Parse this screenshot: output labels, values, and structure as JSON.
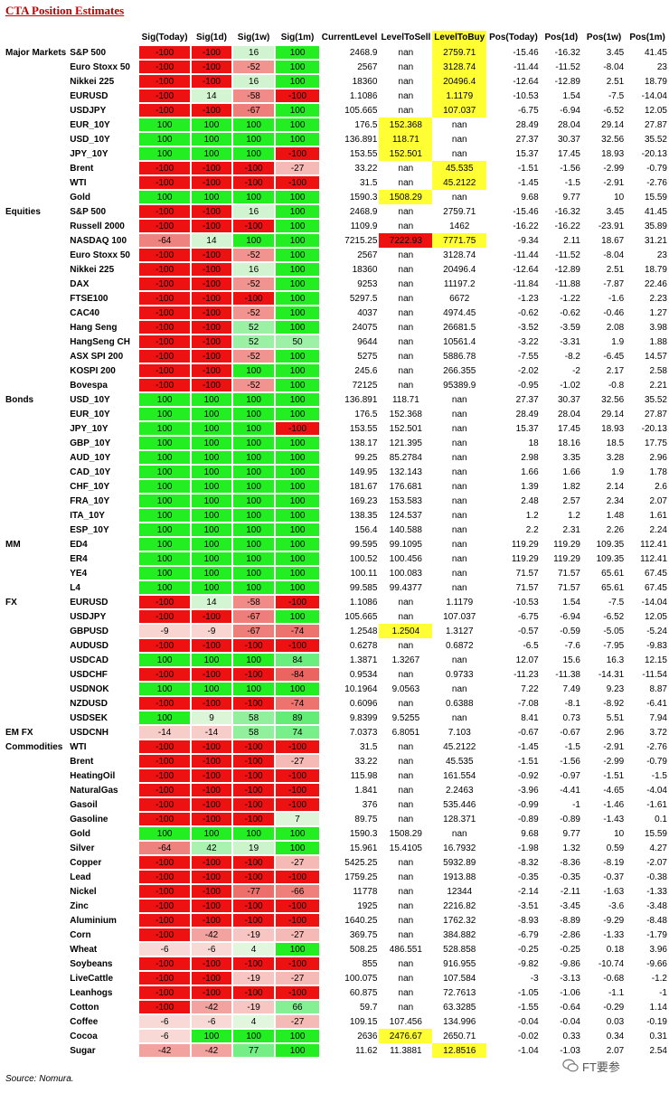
{
  "title": "CTA Position Estimates",
  "source": "Source: Nomura.",
  "watermark": "FT要参",
  "columns": [
    "",
    "",
    "Sig(Today)",
    "Sig(1d)",
    "Sig(1w)",
    "Sig(1m)",
    "CurrentLevel",
    "LevelToSell",
    "LevelToBuy",
    "Pos(Today)",
    "Pos(1d)",
    "Pos(1w)",
    "Pos(1m)"
  ],
  "rows": [
    [
      "Major Markets",
      "S&P 500",
      "-100",
      "-100",
      "16",
      "100",
      "2468.9",
      "nan",
      "2759.71",
      "-15.46",
      "-16.32",
      "3.45",
      "41.45"
    ],
    [
      "",
      "Euro Stoxx 50",
      "-100",
      "-100",
      "-52",
      "100",
      "2567",
      "nan",
      "3128.74",
      "-11.44",
      "-11.52",
      "-8.04",
      "23"
    ],
    [
      "",
      "Nikkei 225",
      "-100",
      "-100",
      "16",
      "100",
      "18360",
      "nan",
      "20496.4",
      "-12.64",
      "-12.89",
      "2.51",
      "18.79"
    ],
    [
      "",
      "EURUSD",
      "-100",
      "14",
      "-58",
      "-100",
      "1.1086",
      "nan",
      "1.1179",
      "-10.53",
      "1.54",
      "-7.5",
      "-14.04"
    ],
    [
      "",
      "USDJPY",
      "-100",
      "-100",
      "-67",
      "100",
      "105.665",
      "nan",
      "107.037",
      "-6.75",
      "-6.94",
      "-6.52",
      "12.05"
    ],
    [
      "",
      "EUR_10Y",
      "100",
      "100",
      "100",
      "100",
      "176.5",
      "152.368",
      "nan",
      "28.49",
      "28.04",
      "29.14",
      "27.87"
    ],
    [
      "",
      "USD_10Y",
      "100",
      "100",
      "100",
      "100",
      "136.891",
      "118.71",
      "nan",
      "27.37",
      "30.37",
      "32.56",
      "35.52"
    ],
    [
      "",
      "JPY_10Y",
      "100",
      "100",
      "100",
      "-100",
      "153.55",
      "152.501",
      "nan",
      "15.37",
      "17.45",
      "18.93",
      "-20.13"
    ],
    [
      "",
      "Brent",
      "-100",
      "-100",
      "-100",
      "-27",
      "33.22",
      "nan",
      "45.535",
      "-1.51",
      "-1.56",
      "-2.99",
      "-0.79"
    ],
    [
      "",
      "WTI",
      "-100",
      "-100",
      "-100",
      "-100",
      "31.5",
      "nan",
      "45.2122",
      "-1.45",
      "-1.5",
      "-2.91",
      "-2.76"
    ],
    [
      "",
      "Gold",
      "100",
      "100",
      "100",
      "100",
      "1590.3",
      "1508.29",
      "nan",
      "9.68",
      "9.77",
      "10",
      "15.59"
    ],
    [
      "Equities",
      "S&P 500",
      "-100",
      "-100",
      "16",
      "100",
      "2468.9",
      "nan",
      "2759.71",
      "-15.46",
      "-16.32",
      "3.45",
      "41.45"
    ],
    [
      "",
      "Russell 2000",
      "-100",
      "-100",
      "-100",
      "100",
      "1109.9",
      "nan",
      "1462",
      "-16.22",
      "-16.22",
      "-23.91",
      "35.89"
    ],
    [
      "",
      "NASDAQ 100",
      "-64",
      "14",
      "100",
      "100",
      "7215.25",
      "7222.93",
      "7771.75",
      "-9.34",
      "2.11",
      "18.67",
      "31.21"
    ],
    [
      "",
      "Euro Stoxx 50",
      "-100",
      "-100",
      "-52",
      "100",
      "2567",
      "nan",
      "3128.74",
      "-11.44",
      "-11.52",
      "-8.04",
      "23"
    ],
    [
      "",
      "Nikkei 225",
      "-100",
      "-100",
      "16",
      "100",
      "18360",
      "nan",
      "20496.4",
      "-12.64",
      "-12.89",
      "2.51",
      "18.79"
    ],
    [
      "",
      "DAX",
      "-100",
      "-100",
      "-52",
      "100",
      "9253",
      "nan",
      "11197.2",
      "-11.84",
      "-11.88",
      "-7.87",
      "22.46"
    ],
    [
      "",
      "FTSE100",
      "-100",
      "-100",
      "-100",
      "100",
      "5297.5",
      "nan",
      "6672",
      "-1.23",
      "-1.22",
      "-1.6",
      "2.23"
    ],
    [
      "",
      "CAC40",
      "-100",
      "-100",
      "-52",
      "100",
      "4037",
      "nan",
      "4974.45",
      "-0.62",
      "-0.62",
      "-0.46",
      "1.27"
    ],
    [
      "",
      "Hang Seng",
      "-100",
      "-100",
      "52",
      "100",
      "24075",
      "nan",
      "26681.5",
      "-3.52",
      "-3.59",
      "2.08",
      "3.98"
    ],
    [
      "",
      "HangSeng CH",
      "-100",
      "-100",
      "52",
      "50",
      "9644",
      "nan",
      "10561.4",
      "-3.22",
      "-3.31",
      "1.9",
      "1.88"
    ],
    [
      "",
      "ASX SPI 200",
      "-100",
      "-100",
      "-52",
      "100",
      "5275",
      "nan",
      "5886.78",
      "-7.55",
      "-8.2",
      "-6.45",
      "14.57"
    ],
    [
      "",
      "KOSPI 200",
      "-100",
      "-100",
      "100",
      "100",
      "245.6",
      "nan",
      "266.355",
      "-2.02",
      "-2",
      "2.17",
      "2.58"
    ],
    [
      "",
      "Bovespa",
      "-100",
      "-100",
      "-52",
      "100",
      "72125",
      "nan",
      "95389.9",
      "-0.95",
      "-1.02",
      "-0.8",
      "2.21"
    ],
    [
      "Bonds",
      "USD_10Y",
      "100",
      "100",
      "100",
      "100",
      "136.891",
      "118.71",
      "nan",
      "27.37",
      "30.37",
      "32.56",
      "35.52"
    ],
    [
      "",
      "EUR_10Y",
      "100",
      "100",
      "100",
      "100",
      "176.5",
      "152.368",
      "nan",
      "28.49",
      "28.04",
      "29.14",
      "27.87"
    ],
    [
      "",
      "JPY_10Y",
      "100",
      "100",
      "100",
      "-100",
      "153.55",
      "152.501",
      "nan",
      "15.37",
      "17.45",
      "18.93",
      "-20.13"
    ],
    [
      "",
      "GBP_10Y",
      "100",
      "100",
      "100",
      "100",
      "138.17",
      "121.395",
      "nan",
      "18",
      "18.16",
      "18.5",
      "17.75"
    ],
    [
      "",
      "AUD_10Y",
      "100",
      "100",
      "100",
      "100",
      "99.25",
      "85.2784",
      "nan",
      "2.98",
      "3.35",
      "3.28",
      "2.96"
    ],
    [
      "",
      "CAD_10Y",
      "100",
      "100",
      "100",
      "100",
      "149.95",
      "132.143",
      "nan",
      "1.66",
      "1.66",
      "1.9",
      "1.78"
    ],
    [
      "",
      "CHF_10Y",
      "100",
      "100",
      "100",
      "100",
      "181.67",
      "176.681",
      "nan",
      "1.39",
      "1.82",
      "2.14",
      "2.6"
    ],
    [
      "",
      "FRA_10Y",
      "100",
      "100",
      "100",
      "100",
      "169.23",
      "153.583",
      "nan",
      "2.48",
      "2.57",
      "2.34",
      "2.07"
    ],
    [
      "",
      "ITA_10Y",
      "100",
      "100",
      "100",
      "100",
      "138.35",
      "124.537",
      "nan",
      "1.2",
      "1.2",
      "1.48",
      "1.61"
    ],
    [
      "",
      "ESP_10Y",
      "100",
      "100",
      "100",
      "100",
      "156.4",
      "140.588",
      "nan",
      "2.2",
      "2.31",
      "2.26",
      "2.24"
    ],
    [
      "MM",
      "ED4",
      "100",
      "100",
      "100",
      "100",
      "99.595",
      "99.1095",
      "nan",
      "119.29",
      "119.29",
      "109.35",
      "112.41"
    ],
    [
      "",
      "ER4",
      "100",
      "100",
      "100",
      "100",
      "100.52",
      "100.456",
      "nan",
      "119.29",
      "119.29",
      "109.35",
      "112.41"
    ],
    [
      "",
      "YE4",
      "100",
      "100",
      "100",
      "100",
      "100.11",
      "100.083",
      "nan",
      "71.57",
      "71.57",
      "65.61",
      "67.45"
    ],
    [
      "",
      "L4",
      "100",
      "100",
      "100",
      "100",
      "99.585",
      "99.4377",
      "nan",
      "71.57",
      "71.57",
      "65.61",
      "67.45"
    ],
    [
      "FX",
      "EURUSD",
      "-100",
      "14",
      "-58",
      "-100",
      "1.1086",
      "nan",
      "1.1179",
      "-10.53",
      "1.54",
      "-7.5",
      "-14.04"
    ],
    [
      "",
      "USDJPY",
      "-100",
      "-100",
      "-67",
      "100",
      "105.665",
      "nan",
      "107.037",
      "-6.75",
      "-6.94",
      "-6.52",
      "12.05"
    ],
    [
      "",
      "GBPUSD",
      "-9",
      "-9",
      "-67",
      "-74",
      "1.2548",
      "1.2504",
      "1.3127",
      "-0.57",
      "-0.59",
      "-5.05",
      "-5.24"
    ],
    [
      "",
      "AUDUSD",
      "-100",
      "-100",
      "-100",
      "-100",
      "0.6278",
      "nan",
      "0.6872",
      "-6.5",
      "-7.6",
      "-7.95",
      "-9.83"
    ],
    [
      "",
      "USDCAD",
      "100",
      "100",
      "100",
      "84",
      "1.3871",
      "1.3267",
      "nan",
      "12.07",
      "15.6",
      "16.3",
      "12.15"
    ],
    [
      "",
      "USDCHF",
      "-100",
      "-100",
      "-100",
      "-84",
      "0.9534",
      "nan",
      "0.9733",
      "-11.23",
      "-11.38",
      "-14.31",
      "-11.54"
    ],
    [
      "",
      "USDNOK",
      "100",
      "100",
      "100",
      "100",
      "10.1964",
      "9.0563",
      "nan",
      "7.22",
      "7.49",
      "9.23",
      "8.87"
    ],
    [
      "",
      "NZDUSD",
      "-100",
      "-100",
      "-100",
      "-74",
      "0.6096",
      "nan",
      "0.6388",
      "-7.08",
      "-8.1",
      "-8.92",
      "-6.41"
    ],
    [
      "",
      "USDSEK",
      "100",
      "9",
      "58",
      "89",
      "9.8399",
      "9.5255",
      "nan",
      "8.41",
      "0.73",
      "5.51",
      "7.94"
    ],
    [
      "EM FX",
      "USDCNH",
      "-14",
      "-14",
      "58",
      "74",
      "7.0373",
      "6.8051",
      "7.103",
      "-0.67",
      "-0.67",
      "2.96",
      "3.72"
    ],
    [
      "Commodities",
      "WTI",
      "-100",
      "-100",
      "-100",
      "-100",
      "31.5",
      "nan",
      "45.2122",
      "-1.45",
      "-1.5",
      "-2.91",
      "-2.76"
    ],
    [
      "",
      "Brent",
      "-100",
      "-100",
      "-100",
      "-27",
      "33.22",
      "nan",
      "45.535",
      "-1.51",
      "-1.56",
      "-2.99",
      "-0.79"
    ],
    [
      "",
      "HeatingOil",
      "-100",
      "-100",
      "-100",
      "-100",
      "115.98",
      "nan",
      "161.554",
      "-0.92",
      "-0.97",
      "-1.51",
      "-1.5"
    ],
    [
      "",
      "NaturalGas",
      "-100",
      "-100",
      "-100",
      "-100",
      "1.841",
      "nan",
      "2.2463",
      "-3.96",
      "-4.41",
      "-4.65",
      "-4.04"
    ],
    [
      "",
      "Gasoil",
      "-100",
      "-100",
      "-100",
      "-100",
      "376",
      "nan",
      "535.446",
      "-0.99",
      "-1",
      "-1.46",
      "-1.61"
    ],
    [
      "",
      "Gasoline",
      "-100",
      "-100",
      "-100",
      "7",
      "89.75",
      "nan",
      "128.371",
      "-0.89",
      "-0.89",
      "-1.43",
      "0.1"
    ],
    [
      "",
      "Gold",
      "100",
      "100",
      "100",
      "100",
      "1590.3",
      "1508.29",
      "nan",
      "9.68",
      "9.77",
      "10",
      "15.59"
    ],
    [
      "",
      "Silver",
      "-64",
      "42",
      "19",
      "100",
      "15.961",
      "15.4105",
      "16.7932",
      "-1.98",
      "1.32",
      "0.59",
      "4.27"
    ],
    [
      "",
      "Copper",
      "-100",
      "-100",
      "-100",
      "-27",
      "5425.25",
      "nan",
      "5932.89",
      "-8.32",
      "-8.36",
      "-8.19",
      "-2.07"
    ],
    [
      "",
      "Lead",
      "-100",
      "-100",
      "-100",
      "-100",
      "1759.25",
      "nan",
      "1913.88",
      "-0.35",
      "-0.35",
      "-0.37",
      "-0.38"
    ],
    [
      "",
      "Nickel",
      "-100",
      "-100",
      "-77",
      "-66",
      "11778",
      "nan",
      "12344",
      "-2.14",
      "-2.11",
      "-1.63",
      "-1.33"
    ],
    [
      "",
      "Zinc",
      "-100",
      "-100",
      "-100",
      "-100",
      "1925",
      "nan",
      "2216.82",
      "-3.51",
      "-3.45",
      "-3.6",
      "-3.48"
    ],
    [
      "",
      "Aluminium",
      "-100",
      "-100",
      "-100",
      "-100",
      "1640.25",
      "nan",
      "1762.32",
      "-8.93",
      "-8.89",
      "-9.29",
      "-8.48"
    ],
    [
      "",
      "Corn",
      "-100",
      "-42",
      "-19",
      "-27",
      "369.75",
      "nan",
      "384.882",
      "-6.79",
      "-2.86",
      "-1.33",
      "-1.79"
    ],
    [
      "",
      "Wheat",
      "-6",
      "-6",
      "4",
      "100",
      "508.25",
      "486.551",
      "528.858",
      "-0.25",
      "-0.25",
      "0.18",
      "3.96"
    ],
    [
      "",
      "Soybeans",
      "-100",
      "-100",
      "-100",
      "-100",
      "855",
      "nan",
      "916.955",
      "-9.82",
      "-9.86",
      "-10.74",
      "-9.66"
    ],
    [
      "",
      "LiveCattle",
      "-100",
      "-100",
      "-19",
      "-27",
      "100.075",
      "nan",
      "107.584",
      "-3",
      "-3.13",
      "-0.68",
      "-1.2"
    ],
    [
      "",
      "Leanhogs",
      "-100",
      "-100",
      "-100",
      "-100",
      "60.875",
      "nan",
      "72.7613",
      "-1.05",
      "-1.06",
      "-1.1",
      "-1"
    ],
    [
      "",
      "Cotton",
      "-100",
      "-42",
      "-19",
      "66",
      "59.7",
      "nan",
      "63.3285",
      "-1.55",
      "-0.64",
      "-0.29",
      "1.14"
    ],
    [
      "",
      "Coffee",
      "-6",
      "-6",
      "4",
      "-27",
      "109.15",
      "107.456",
      "134.996",
      "-0.04",
      "-0.04",
      "0.03",
      "-0.19"
    ],
    [
      "",
      "Cocoa",
      "-6",
      "100",
      "100",
      "100",
      "2636",
      "2476.67",
      "2650.71",
      "-0.02",
      "0.33",
      "0.34",
      "0.31"
    ],
    [
      "",
      "Sugar",
      "-42",
      "-42",
      "77",
      "100",
      "11.62",
      "11.3881",
      "12.8516",
      "-1.04",
      "-1.03",
      "2.07",
      "2.54"
    ]
  ],
  "highlights": [
    {
      "row": 0,
      "col": 8,
      "color": "#ffff33"
    },
    {
      "row": 1,
      "col": 8,
      "color": "#ffff33"
    },
    {
      "row": 2,
      "col": 8,
      "color": "#ffff33"
    },
    {
      "row": 3,
      "col": 8,
      "color": "#ffff33"
    },
    {
      "row": 4,
      "col": 8,
      "color": "#ffff33"
    },
    {
      "row": 5,
      "col": 7,
      "color": "#ffff33"
    },
    {
      "row": 6,
      "col": 7,
      "color": "#ffff33"
    },
    {
      "row": 7,
      "col": 7,
      "color": "#ffff33"
    },
    {
      "row": 8,
      "col": 8,
      "color": "#ffff33"
    },
    {
      "row": 9,
      "col": 8,
      "color": "#ffff33"
    },
    {
      "row": 10,
      "col": 7,
      "color": "#ffff33"
    },
    {
      "row": 13,
      "col": 7,
      "color": "#ee1111"
    },
    {
      "row": 13,
      "col": 8,
      "color": "#ffff33"
    },
    {
      "row": 40,
      "col": 7,
      "color": "#ffff33"
    },
    {
      "row": 68,
      "col": 7,
      "color": "#ffff33"
    },
    {
      "row": 69,
      "col": 8,
      "color": "#ffff33"
    }
  ],
  "header_highlight_col": 8,
  "colors": {
    "title": "#c00000",
    "highlight": "#ffff33",
    "neg_strong": "#ee1111",
    "pos_strong": "#22ee22"
  }
}
